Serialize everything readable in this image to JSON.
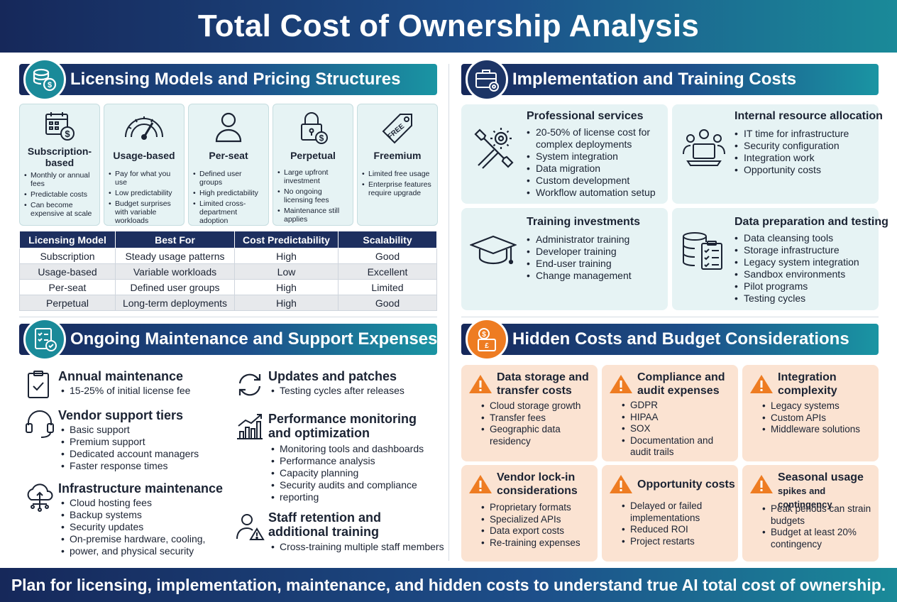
{
  "title": "Total Cost of Ownership Analysis",
  "footer": "Plan for licensing, implementation, maintenance, and hidden costs to understand true AI total cost of ownership.",
  "licensing": {
    "heading": "Licensing Models and Pricing Structures",
    "cards": [
      {
        "title": "Subscription-based",
        "bullets": [
          "Monthly or annual fees",
          "Predictable costs",
          "Can become expensive at scale"
        ]
      },
      {
        "title": "Usage-based",
        "bullets": [
          "Pay for what you use",
          "Low predictability",
          "Budget surprises with variable workloads"
        ]
      },
      {
        "title": "Per-seat",
        "bullets": [
          "Defined user groups",
          "High predictability",
          "Limited cross-department adoption"
        ]
      },
      {
        "title": "Perpetual",
        "bullets": [
          "Large upfront investment",
          "No ongoing licensing fees",
          "Maintenance still applies"
        ]
      },
      {
        "title": "Freemium",
        "bullets": [
          "Limited free usage",
          "Enterprise features require upgrade"
        ]
      }
    ],
    "freemium_tag": "FREE",
    "table": {
      "headers": [
        "Licensing Model",
        "Best For",
        "Cost Predictability",
        "Scalability"
      ],
      "rows": [
        [
          "Subscription",
          "Steady usage patterns",
          "High",
          "Good"
        ],
        [
          "Usage-based",
          "Variable workloads",
          "Low",
          "Excellent"
        ],
        [
          "Per-seat",
          "Defined user groups",
          "High",
          "Limited"
        ],
        [
          "Perpetual",
          "Long-term deployments",
          "High",
          "Good"
        ]
      ]
    }
  },
  "implementation": {
    "heading": "Implementation and Training Costs",
    "cards": [
      {
        "title": "Professional services",
        "bullets": [
          "20-50% of license cost for complex deployments",
          "System integration",
          "Data migration",
          "Custom development",
          "Workflow automation setup"
        ]
      },
      {
        "title": "Internal resource allocation",
        "bullets": [
          "IT time for infrastructure",
          "Security configuration",
          "Integration work",
          "Opportunity costs"
        ]
      },
      {
        "title": "Training investments",
        "bullets": [
          "Administrator training",
          "Developer training",
          "End-user training",
          "Change management"
        ]
      },
      {
        "title": "Data preparation and testing",
        "bullets": [
          "Data cleansing tools",
          "Storage infrastructure",
          "Legacy system integration",
          "Sandbox environments",
          "Pilot programs",
          "Testing cycles"
        ]
      }
    ]
  },
  "maintenance": {
    "heading": "Ongoing Maintenance and Support Expenses",
    "items": [
      {
        "title": "Annual maintenance",
        "bullets": [
          "15-25% of initial license fee"
        ]
      },
      {
        "title": "Vendor support tiers",
        "bullets": [
          "Basic support",
          "Premium support",
          "Dedicated account managers",
          "Faster response times"
        ]
      },
      {
        "title": "Infrastructure maintenance",
        "bullets": [
          "Cloud hosting fees",
          "Backup systems",
          "Security updates",
          "On-premise hardware, cooling,",
          "power, and physical security"
        ]
      },
      {
        "title": "Updates and patches",
        "bullets": [
          "Testing cycles after releases"
        ]
      },
      {
        "title_line1": "Performance monitoring",
        "title_line2": "and optimization",
        "bullets": [
          "Monitoring tools and dashboards",
          "Performance analysis",
          "Capacity planning",
          "Security audits and compliance",
          "reporting"
        ]
      },
      {
        "title_line1": "Staff retention and",
        "title_line2": "additional training",
        "bullets": [
          "Cross-training multiple staff members"
        ]
      }
    ]
  },
  "hidden": {
    "heading": "Hidden Costs and Budget Considerations",
    "cards": [
      {
        "title": "Data storage and transfer costs",
        "bullets": [
          "Cloud storage growth",
          "Transfer fees",
          "Geographic data residency"
        ]
      },
      {
        "title": "Compliance and audit expenses",
        "bullets": [
          "GDPR",
          "HIPAA",
          "SOX",
          "Documentation and audit trails"
        ]
      },
      {
        "title": "Integration complexity",
        "bullets": [
          "Legacy systems",
          "Custom APIs",
          "Middleware solutions"
        ]
      },
      {
        "title": "Vendor lock-in considerations",
        "bullets": [
          "Proprietary formats",
          "Specialized APIs",
          "Data export costs",
          "Re-training expenses"
        ]
      },
      {
        "title": "Opportunity costs",
        "bullets": [
          "Delayed or failed implementations",
          "Reduced ROI",
          "Project restarts"
        ]
      },
      {
        "title": "Seasonal usage",
        "subtitle": "spikes and contingency",
        "bullets": [
          "Peak periods can strain budgets",
          "Budget at least 20% contingency"
        ]
      }
    ]
  },
  "colors": {
    "navy": "#16285a",
    "teal": "#1a8a99",
    "orange": "#ee7c22",
    "card_teal": "#e6f3f4",
    "card_peach": "#fbe3d2"
  }
}
